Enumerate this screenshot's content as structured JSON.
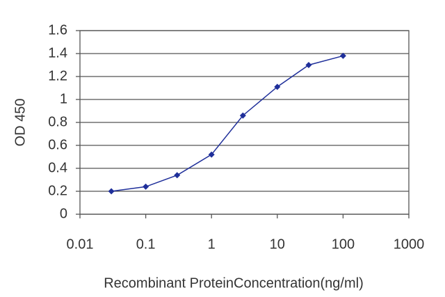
{
  "chart_data": {
    "type": "line",
    "x_label": "Recombinant ProteinConcentration(ng/ml)",
    "y_label": "OD 450",
    "x": [
      0.03,
      0.1,
      0.3,
      1,
      3,
      10,
      30,
      100
    ],
    "series": [
      {
        "color": "#1f2f9a",
        "values": [
          0.2,
          0.24,
          0.34,
          0.52,
          0.86,
          1.11,
          1.3,
          1.38
        ]
      }
    ],
    "x_log": true,
    "xlim": [
      0.01,
      1000
    ],
    "xticks": [
      0.01,
      0.1,
      1,
      10,
      100,
      1000
    ],
    "ylim": [
      0,
      1.6
    ],
    "yticks": [
      0,
      0.2,
      0.4,
      0.6,
      0.8,
      1,
      1.2,
      1.4,
      1.6
    ],
    "grid": true
  }
}
